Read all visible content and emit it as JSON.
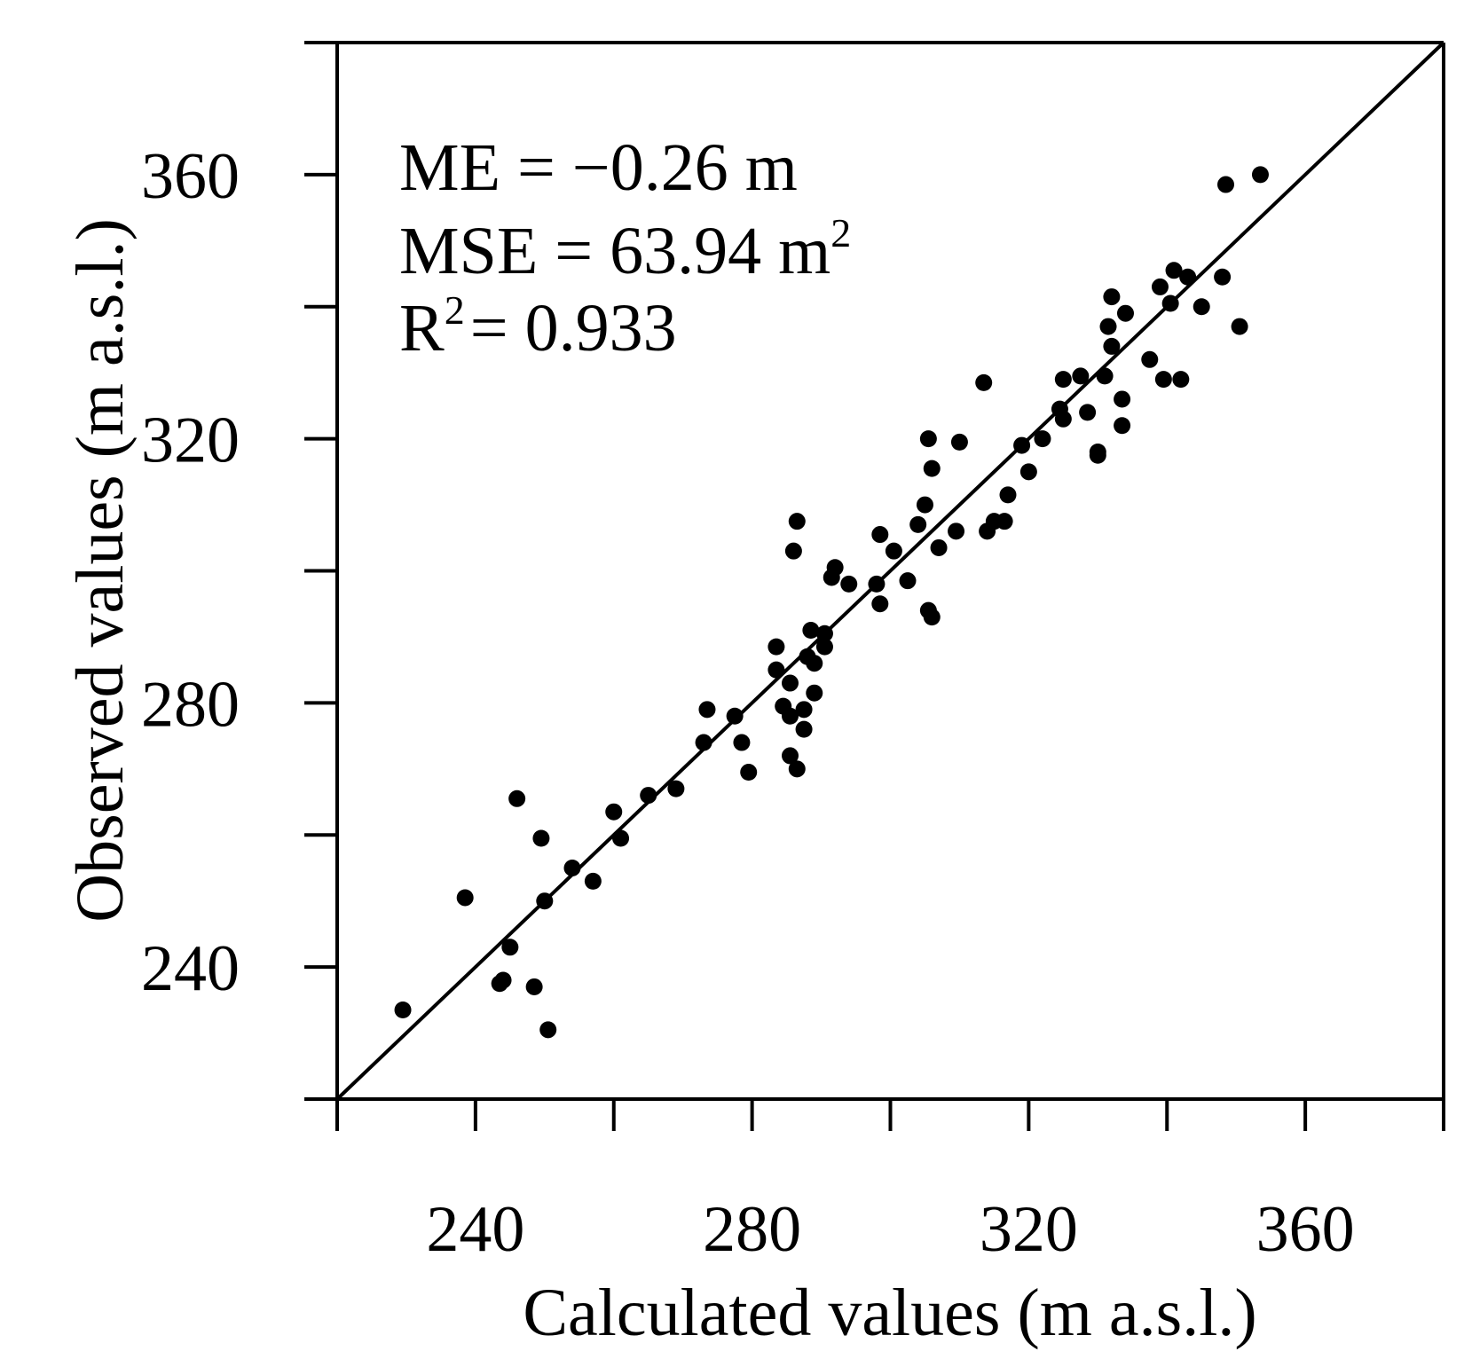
{
  "chart_data": {
    "type": "scatter",
    "title": "",
    "xlabel": "Calculated values (m a.s.l.)",
    "ylabel": "Observed values (m a.s.l.)",
    "xlim": [
      220,
      380
    ],
    "ylim": [
      220,
      380
    ],
    "x_ticks_major": [
      240,
      280,
      320,
      360
    ],
    "y_ticks_major": [
      240,
      280,
      320,
      360
    ],
    "ticks_step": 20,
    "reference_line": "1:1",
    "grid": false,
    "annotations": {
      "me": "ME = −0.26 m",
      "mse_main": "MSE = 63.94 m",
      "mse_exp": "2",
      "r2_main": "R",
      "r2_exp": "2",
      "r2_rest": "= 0.933"
    },
    "points": [
      [
        229.5,
        233.5
      ],
      [
        238.5,
        250.5
      ],
      [
        243.5,
        237.5
      ],
      [
        244,
        238
      ],
      [
        245,
        243
      ],
      [
        246,
        265.5
      ],
      [
        248.5,
        237
      ],
      [
        249.5,
        259.5
      ],
      [
        250,
        250
      ],
      [
        250.5,
        230.5
      ],
      [
        254,
        255
      ],
      [
        257,
        253
      ],
      [
        260,
        263.5
      ],
      [
        261,
        259.5
      ],
      [
        265,
        266
      ],
      [
        269,
        267
      ],
      [
        273,
        274
      ],
      [
        273.5,
        279
      ],
      [
        277.5,
        278
      ],
      [
        278.5,
        274
      ],
      [
        279.5,
        269.5
      ],
      [
        283.5,
        288.5
      ],
      [
        283.5,
        285
      ],
      [
        284.5,
        279.5
      ],
      [
        285.5,
        278
      ],
      [
        285.5,
        283
      ],
      [
        285.5,
        272
      ],
      [
        286,
        303
      ],
      [
        286.5,
        307.5
      ],
      [
        286.5,
        270
      ],
      [
        287.5,
        279
      ],
      [
        287.5,
        276
      ],
      [
        288,
        287
      ],
      [
        288.5,
        291
      ],
      [
        289,
        286
      ],
      [
        289,
        281.5
      ],
      [
        290.5,
        288.5
      ],
      [
        290.5,
        290.5
      ],
      [
        291.5,
        299
      ],
      [
        292,
        300.5
      ],
      [
        294,
        298
      ],
      [
        298,
        298
      ],
      [
        298.5,
        305.5
      ],
      [
        298.5,
        295
      ],
      [
        300.5,
        303
      ],
      [
        302.5,
        298.5
      ],
      [
        304,
        307
      ],
      [
        305,
        310
      ],
      [
        305.5,
        320
      ],
      [
        305.5,
        294
      ],
      [
        306,
        293
      ],
      [
        306,
        315.5
      ],
      [
        307,
        303.5
      ],
      [
        309.5,
        306
      ],
      [
        310,
        319.5
      ],
      [
        313.5,
        328.5
      ],
      [
        314,
        306
      ],
      [
        315,
        307.5
      ],
      [
        316.5,
        307.5
      ],
      [
        317,
        311.5
      ],
      [
        319,
        319
      ],
      [
        320,
        315
      ],
      [
        322,
        320
      ],
      [
        324.5,
        324.5
      ],
      [
        325,
        323
      ],
      [
        325,
        329
      ],
      [
        327.5,
        329.5
      ],
      [
        328.5,
        324
      ],
      [
        330,
        318
      ],
      [
        330,
        317.5
      ],
      [
        331,
        329.5
      ],
      [
        331.5,
        337
      ],
      [
        332,
        341.5
      ],
      [
        332,
        334
      ],
      [
        333.5,
        326
      ],
      [
        333.5,
        322
      ],
      [
        334,
        339
      ],
      [
        337.5,
        332
      ],
      [
        339,
        343
      ],
      [
        339.5,
        329
      ],
      [
        340.5,
        340.5
      ],
      [
        341,
        345.5
      ],
      [
        342,
        329
      ],
      [
        343,
        344.5
      ],
      [
        345,
        340
      ],
      [
        348,
        344.5
      ],
      [
        348.5,
        358.5
      ],
      [
        350.5,
        337
      ],
      [
        353.5,
        360
      ]
    ]
  }
}
